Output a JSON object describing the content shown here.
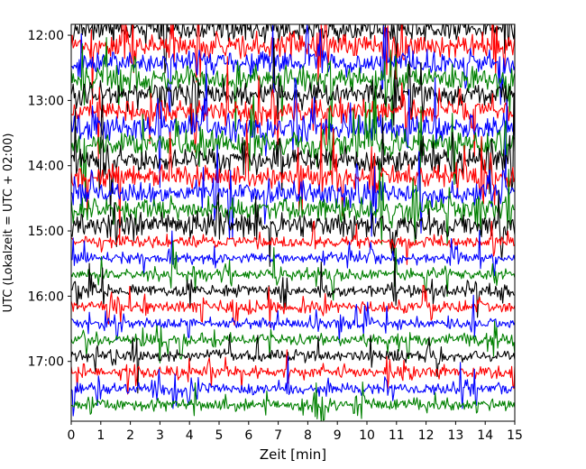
{
  "chart_data": {
    "type": "line",
    "title": "",
    "xlabel": "Zeit  [min]",
    "ylabel": "UTC (Lokalzeit = UTC + 02:00)",
    "xlim": [
      0,
      15
    ],
    "x_ticks": [
      "0",
      "1",
      "2",
      "3",
      "4",
      "5",
      "6",
      "7",
      "8",
      "9",
      "10",
      "11",
      "12",
      "13",
      "14",
      "15"
    ],
    "y_ticks": [
      "12:00",
      "13:00",
      "14:00",
      "15:00",
      "16:00",
      "17:00"
    ],
    "y_range_utc": [
      "11:50",
      "17:55"
    ],
    "trace_interval_min": 15,
    "trace_count": 24,
    "trace_start_utc": "11:55",
    "trace_colors": [
      "#000000",
      "#ff0000",
      "#0000ff",
      "#008000"
    ],
    "grid": false,
    "legend": "none"
  }
}
